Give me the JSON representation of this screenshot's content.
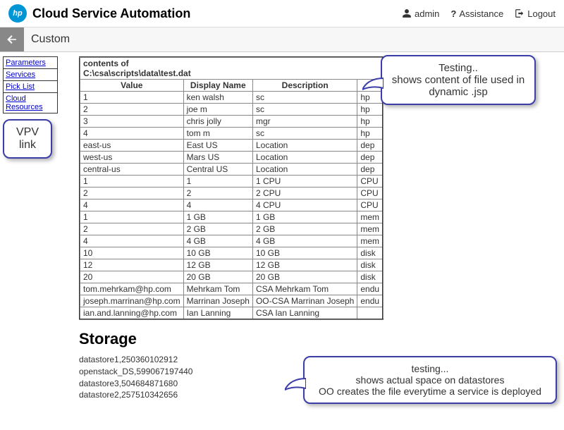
{
  "header": {
    "logo_text": "hp",
    "app_title": "Cloud Service Automation",
    "user_label": "admin",
    "help_label": "Assistance",
    "logout_label": "Logout"
  },
  "subheader": {
    "title": "Custom"
  },
  "sidebar": {
    "nav": [
      "Parameters",
      "Services",
      "Pick List",
      "Cloud Resources"
    ],
    "vpv_callout": "VPV link"
  },
  "table": {
    "caption_line1": "contents of",
    "caption_line2": "C:\\csa\\scripts\\data\\test.dat",
    "columns": [
      "Value",
      "Display Name",
      "Description",
      ""
    ],
    "rows": [
      [
        "1",
        "ken walsh",
        "sc",
        "hp"
      ],
      [
        "2",
        "joe m",
        "sc",
        "hp"
      ],
      [
        "3",
        "chris jolly",
        "mgr",
        "hp"
      ],
      [
        "4",
        "tom m",
        "sc",
        "hp"
      ],
      [
        "east-us",
        "East US",
        "Location",
        "dep"
      ],
      [
        "west-us",
        "Mars US",
        "Location",
        "dep"
      ],
      [
        "central-us",
        "Central US",
        "Location",
        "dep"
      ],
      [
        "1",
        "1",
        "1 CPU",
        "CPU"
      ],
      [
        "2",
        "2",
        "2 CPU",
        "CPU"
      ],
      [
        "4",
        "4",
        "4 CPU",
        "CPU"
      ],
      [
        "1",
        "1 GB",
        "1 GB",
        "mem"
      ],
      [
        "2",
        "2 GB",
        "2 GB",
        "mem"
      ],
      [
        "4",
        "4 GB",
        "4 GB",
        "mem"
      ],
      [
        "10",
        "10 GB",
        "10 GB",
        "disk"
      ],
      [
        "12",
        "12 GB",
        "12 GB",
        "disk"
      ],
      [
        "20",
        "20 GB",
        "20 GB",
        "disk"
      ],
      [
        "tom.mehrkam@hp.com",
        "Mehrkam Tom",
        "CSA Mehrkam Tom",
        "endu"
      ],
      [
        "joseph.marrinan@hp.com",
        "Marrinan Joseph",
        "OO-CSA Marrinan Joseph",
        "endu"
      ],
      [
        "ian.and.lanning@hp.com",
        "Ian Lanning",
        "CSA Ian Lanning",
        ""
      ]
    ]
  },
  "storage": {
    "heading": "Storage",
    "lines": [
      "datastore1,250360102912",
      "openstack_DS,599067197440",
      "datastore3,504684871680",
      "datastore2,257510342656"
    ]
  },
  "callouts": {
    "top": "Testing..\nshows content of file used in dynamic .jsp",
    "bottom": "testing...\nshows actual space on datastores\nOO creates the file everytime a service is deployed"
  },
  "colors": {
    "callout_border": "#3b3da8",
    "link": "#0000cc",
    "hp_blue": "#0096d6"
  }
}
